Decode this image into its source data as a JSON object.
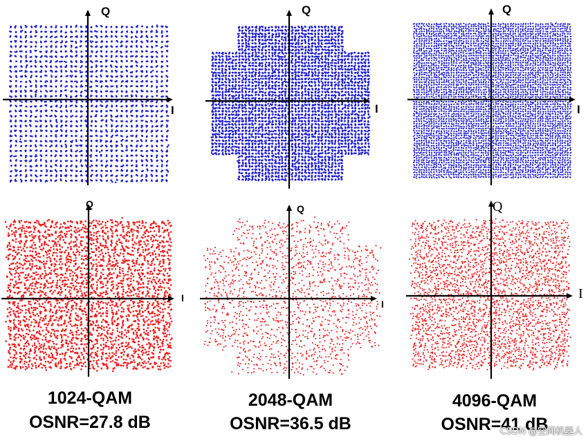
{
  "axis_labels": {
    "i": "I",
    "q": "Q"
  },
  "colors": {
    "ideal_points": "#1f1fd0",
    "noisy_points": "#ee1c1c",
    "axis": "#000000"
  },
  "panels": [
    {
      "format": "1024-QAM",
      "osnr": "OSNR=27.8 dB",
      "grid": 32,
      "shape": "square"
    },
    {
      "format": "2048-QAM",
      "osnr": "OSNR=36.5 dB",
      "grid": 48,
      "shape": "cross"
    },
    {
      "format": "4096-QAM",
      "osnr": "OSNR=41 dB",
      "grid": 64,
      "shape": "square"
    }
  ],
  "watermark": "CSDN @空间机器人"
}
